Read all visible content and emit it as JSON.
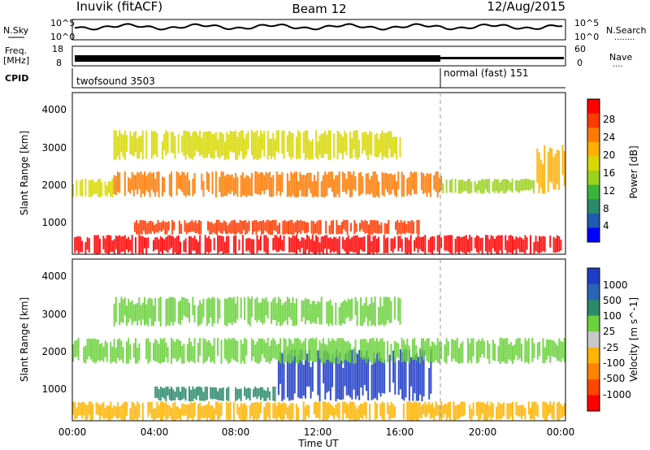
{
  "header": {
    "site": "Inuvik (fitACF)",
    "beam": "Beam 12",
    "date": "12/Aug/2015"
  },
  "panels": {
    "nsky": {
      "left_label": "N.Sky",
      "left_ticks": [
        "10^5",
        "10^0"
      ],
      "right_ticks": [
        "10^5",
        "10^0"
      ],
      "right_label": "N.Search",
      "right_dots": "........"
    },
    "freq": {
      "left_label_1": "Freq.",
      "left_label_2": "[MHz]",
      "left_ticks": [
        "18",
        "8"
      ],
      "right_ticks": [
        "60",
        "0"
      ],
      "right_label": "Nave",
      "right_dots": "...."
    },
    "cpid": {
      "label": "CPID",
      "mode1": "twofsound 3503",
      "mode2": "normal (fast) 151"
    }
  },
  "range_axis": {
    "label": "Slant Range [km]",
    "ticks": [
      "4000",
      "3000",
      "2000",
      "1000"
    ]
  },
  "time_axis": {
    "label": "Time UT",
    "ticks": [
      "00:00",
      "04:00",
      "08:00",
      "12:00",
      "16:00",
      "20:00",
      "00:00"
    ]
  },
  "colorbars": {
    "power": {
      "label": "Power [dB]",
      "ticks": [
        "28",
        "24",
        "20",
        "16",
        "12",
        "8",
        "4"
      ],
      "colors": [
        "#ff0000",
        "#ff3a00",
        "#ff7a00",
        "#ffb000",
        "#d8d800",
        "#9ad21e",
        "#3cb43c",
        "#2a8a6a",
        "#1e5ab4",
        "#0000ff"
      ]
    },
    "velocity": {
      "label": "Velocity [m s^-1]",
      "ticks": [
        "1000",
        "500",
        "100",
        "25",
        "-25",
        "-100",
        "-500",
        "-1000"
      ],
      "colors": [
        "#1e3cc8",
        "#2a64b4",
        "#2a8a6a",
        "#6ad23c",
        "#c8c8c8",
        "#ffb400",
        "#ff8200",
        "#ff4600",
        "#ff0000"
      ]
    }
  },
  "chart_data": {
    "type": "heatmap",
    "x_range_hours": [
      0,
      24
    ],
    "y_range_km": [
      180,
      4500
    ],
    "mode_change_hour": 18,
    "power_bands": [
      {
        "t_start": 0,
        "t_end": 24,
        "r_low": 180,
        "r_high": 700,
        "level": 28
      },
      {
        "t_start": 3,
        "t_end": 17,
        "r_low": 700,
        "r_high": 1100,
        "level": 24
      },
      {
        "t_start": 0,
        "t_end": 2,
        "r_low": 1700,
        "r_high": 2200,
        "level": 12
      },
      {
        "t_start": 2,
        "t_end": 18,
        "r_low": 1700,
        "r_high": 2400,
        "level": 20
      },
      {
        "t_start": 18,
        "t_end": 22.5,
        "r_low": 1800,
        "r_high": 2200,
        "level": 8
      },
      {
        "t_start": 22.5,
        "t_end": 24,
        "r_low": 1800,
        "r_high": 3100,
        "level": 16
      },
      {
        "t_start": 2,
        "t_end": 16,
        "r_low": 2700,
        "r_high": 3500,
        "level": 12
      }
    ],
    "velocity_bands": [
      {
        "t_start": 0,
        "t_end": 24,
        "r_low": 180,
        "r_high": 700,
        "level": -100
      },
      {
        "t_start": 4,
        "t_end": 10,
        "r_low": 700,
        "r_high": 1100,
        "level": 100
      },
      {
        "t_start": 10,
        "t_end": 17.5,
        "r_low": 700,
        "r_high": 2100,
        "level": 1000
      },
      {
        "t_start": 0,
        "t_end": 24,
        "r_low": 1700,
        "r_high": 2400,
        "level": 25
      },
      {
        "t_start": 2,
        "t_end": 16,
        "r_low": 2700,
        "r_high": 3500,
        "level": 25
      }
    ]
  }
}
